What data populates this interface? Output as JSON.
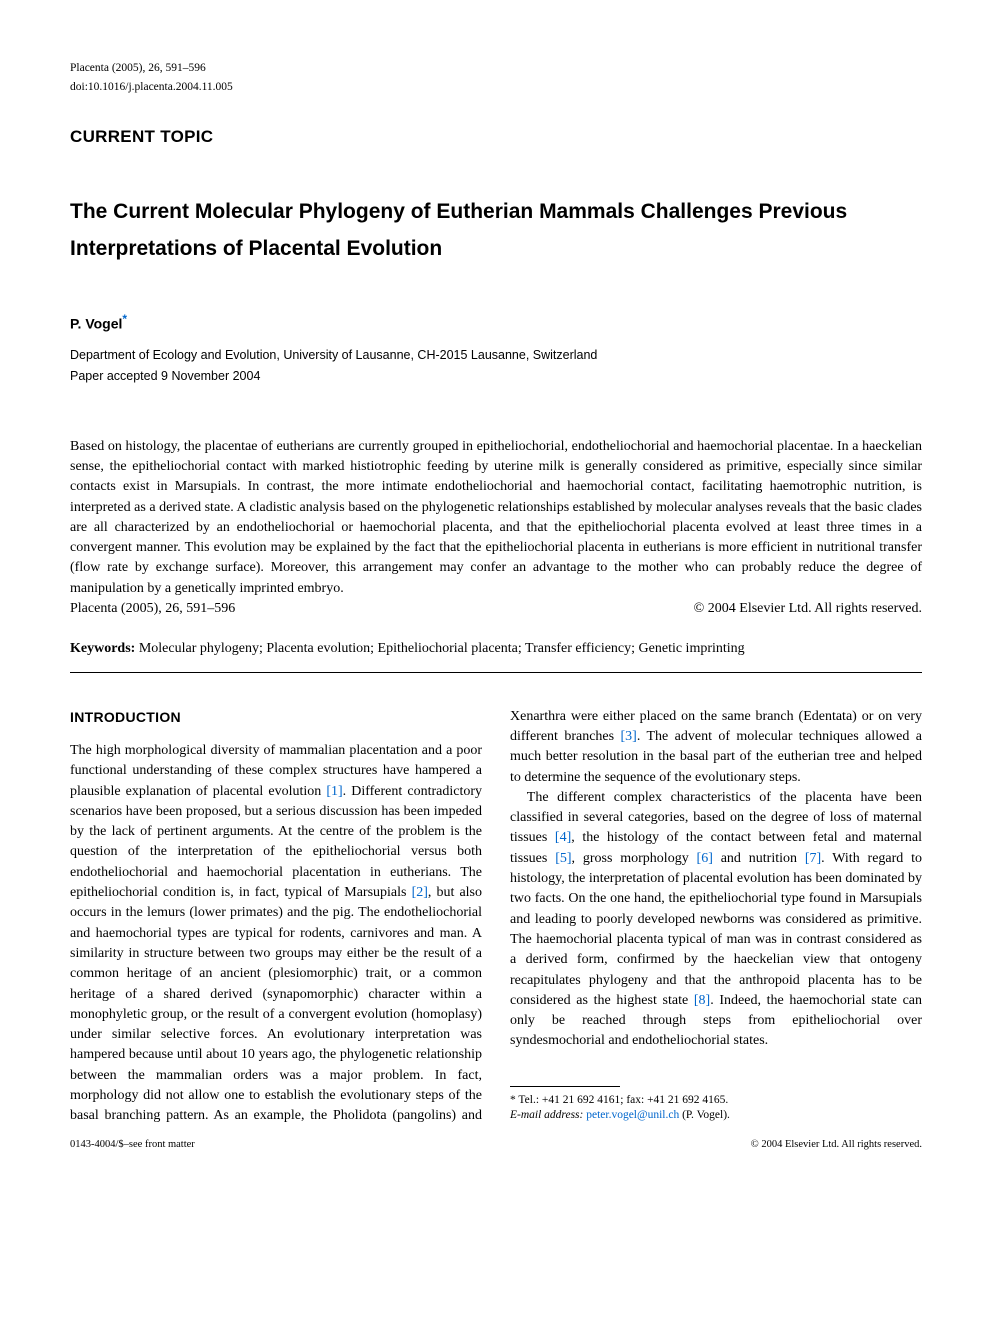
{
  "journal_ref": "Placenta (2005), 26, 591–596",
  "doi": "doi:10.1016/j.placenta.2004.11.005",
  "section_label": "CURRENT TOPIC",
  "title": "The Current Molecular Phylogeny of Eutherian Mammals Challenges Previous Interpretations of Placental Evolution",
  "author": "P. Vogel",
  "author_marker": "*",
  "affiliation": "Department of Ecology and Evolution, University of Lausanne, CH-2015 Lausanne, Switzerland",
  "accepted": "Paper accepted 9 November 2004",
  "abstract": "Based on histology, the placentae of eutherians are currently grouped in epitheliochorial, endotheliochorial and haemochorial placentae. In a haeckelian sense, the epitheliochorial contact with marked histiotrophic feeding by uterine milk is generally considered as primitive, especially since similar contacts exist in Marsupials. In contrast, the more intimate endotheliochorial and haemochorial contact, facilitating haemotrophic nutrition, is interpreted as a derived state. A cladistic analysis based on the phylogenetic relationships established by molecular analyses reveals that the basic clades are all characterized by an endotheliochorial or haemochorial placenta, and that the epitheliochorial placenta evolved at least three times in a convergent manner. This evolution may be explained by the fact that the epitheliochorial placenta in eutherians is more efficient in nutritional transfer (flow rate by exchange surface). Moreover, this arrangement may confer an advantage to the mother who can probably reduce the degree of manipulation by a genetically imprinted embryo.",
  "abstract_journal": "Placenta (2005), 26, 591–596",
  "abstract_copyright": "© 2004 Elsevier Ltd. All rights reserved.",
  "keywords_label": "Keywords:",
  "keywords": "Molecular phylogeny; Placenta evolution; Epitheliochorial placenta; Transfer efficiency; Genetic imprinting",
  "intro_heading": "INTRODUCTION",
  "intro": {
    "p1a": "The high morphological diversity of mammalian placentation and a poor functional understanding of these complex structures have hampered a plausible explanation of placental evolution ",
    "c1": "[1]",
    "p1b": ". Different contradictory scenarios have been proposed, but a serious discussion has been impeded by the lack of pertinent arguments. At the centre of the problem is the question of the interpretation of the epitheliochorial versus both endotheliochorial and haemochorial placentation in eutherians. The epitheliochorial condition is, in fact, typical of Marsupials ",
    "c2": "[2]",
    "p1c": ", but also occurs in the lemurs (lower primates) and the pig. The endotheliochorial and haemochorial types are typical for rodents, carnivores and man. A similarity in structure between two groups may either be the result of a common heritage of an ancient (plesiomorphic) trait, or a common heritage of a shared derived (synapomorphic) character within a monophyletic group, or the result of a convergent evolution (homoplasy) under similar selective forces. An evolutionary interpretation was hampered because until about 10 years ago, the phylogenetic relationship between the mammalian orders was a major problem. In fact, morphology did not allow one to establish the evolutionary steps of the basal branching pattern. As an example, the Pholidota (pangolins) and Xenarthra were either placed on the same branch (Edentata) or on very different branches ",
    "c3": "[3]",
    "p1d": ". The advent of molecular techniques allowed a much better resolution in the basal part of the eutherian tree and helped to determine the sequence of the evolutionary steps.",
    "p2a": "The different complex characteristics of the placenta have been classified in several categories, based on the degree of loss of maternal tissues ",
    "c4": "[4]",
    "p2b": ", the histology of the contact between fetal and maternal tissues ",
    "c5": "[5]",
    "p2c": ", gross morphology ",
    "c6": "[6]",
    "p2d": " and nutrition ",
    "c7": "[7]",
    "p2e": ". With regard to histology, the interpretation of placental evolution has been dominated by two facts. On the one hand, the epitheliochorial type found in Marsupials and leading to poorly developed newborns was considered as primitive. The haemochorial placenta typical of man was in contrast considered as a derived form, confirmed by the haeckelian view that ontogeny recapitulates phylogeny and that the anthropoid placenta has to be considered as the highest state ",
    "c8": "[8]",
    "p2f": ". Indeed, the haemochorial state can only be reached through steps from epitheliochorial over syndesmochorial and endotheliochorial states."
  },
  "footnote": {
    "marker": "*",
    "contact": " Tel.: +41 21 692 4161; fax: +41 21 692 4165.",
    "email_label": "E-mail address:",
    "email": "peter.vogel@unil.ch",
    "email_suffix": " (P. Vogel)."
  },
  "bottom_left": "0143-4004/$–see front matter",
  "bottom_right": "© 2004 Elsevier Ltd. All rights reserved."
}
